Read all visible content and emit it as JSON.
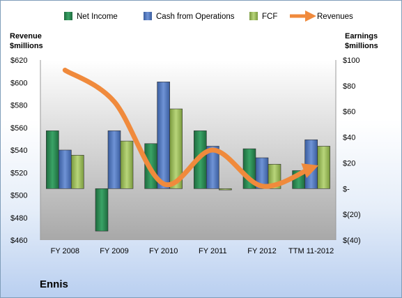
{
  "company": "Ennis",
  "chart_data": {
    "type": "bar",
    "categories": [
      "FY 2008",
      "FY 2009",
      "FY 2010",
      "FY 2011",
      "FY 2012",
      "TTM 11-2012"
    ],
    "left_axis": {
      "label_line1": "Revenue",
      "label_line2": "$millions",
      "range": [
        460,
        620
      ],
      "ticks": [
        "$460",
        "$480",
        "$500",
        "$520",
        "$540",
        "$560",
        "$580",
        "$600",
        "$620"
      ]
    },
    "right_axis": {
      "label_line1": "Earnings",
      "label_line2": "$millions",
      "range": [
        -40,
        100
      ],
      "ticks": [
        "$(40)",
        "$(20)",
        "$-",
        "$20",
        "$40",
        "$60",
        "$80",
        "$100"
      ]
    },
    "series": [
      {
        "name": "Net Income",
        "axis": "right",
        "color": "#2e8b57",
        "values": [
          45,
          -33,
          35,
          45,
          31,
          14
        ]
      },
      {
        "name": "Cash from Operations",
        "axis": "right",
        "color": "#4f75c0",
        "values": [
          30,
          45,
          83,
          33,
          24,
          38
        ]
      },
      {
        "name": "FCF",
        "axis": "right",
        "color": "#9bbb59",
        "values": [
          26,
          37,
          62,
          -1,
          19,
          33
        ]
      },
      {
        "name": "Revenues",
        "axis": "left",
        "type": "line",
        "color": "#f08a3c",
        "values": [
          611,
          583,
          510,
          540,
          508,
          524
        ]
      }
    ],
    "legend_position": "top",
    "grid": false
  }
}
